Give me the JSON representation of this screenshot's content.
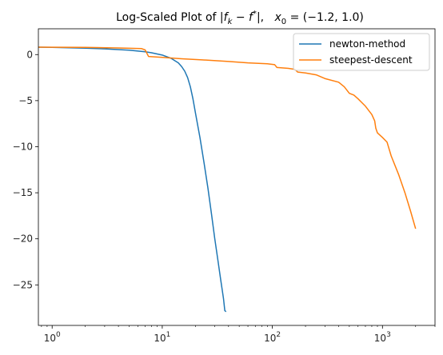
{
  "chart_data": {
    "type": "line",
    "title": "Log-Scaled Plot of |f_k − f*|,   x₀ = (−1.2, 1.0)",
    "title_parts": {
      "lead": "Log-Scaled Plot of |",
      "f": "f",
      "k": "k",
      "minus": " − ",
      "fs": "f",
      "star": "*",
      "close": "|,",
      "x": "x",
      "zero": "0",
      "eq": " = (−1.2, 1.0)"
    },
    "xlabel": "",
    "ylabel": "",
    "xscale": "log",
    "xlim": [
      0.75,
      3000
    ],
    "ylim": [
      -29.4,
      2.8
    ],
    "x_ticks": [
      {
        "value": 1,
        "base": "10",
        "exp": "0"
      },
      {
        "value": 10,
        "base": "10",
        "exp": "1"
      },
      {
        "value": 100,
        "base": "10",
        "exp": "2"
      },
      {
        "value": 1000,
        "base": "10",
        "exp": "3"
      }
    ],
    "y_ticks": [
      {
        "value": 0,
        "label": "0"
      },
      {
        "value": -5,
        "label": "−5"
      },
      {
        "value": -10,
        "label": "−10"
      },
      {
        "value": -15,
        "label": "−15"
      },
      {
        "value": -20,
        "label": "−20"
      },
      {
        "value": -25,
        "label": "−25"
      }
    ],
    "legend_position": "top-right",
    "grid": false,
    "series": [
      {
        "name": "newton-method",
        "color": "#1f77b4",
        "points": [
          [
            0.75,
            0.8
          ],
          [
            1,
            0.78
          ],
          [
            2,
            0.7
          ],
          [
            3,
            0.62
          ],
          [
            5,
            0.48
          ],
          [
            7,
            0.3
          ],
          [
            8,
            0.2
          ],
          [
            10,
            -0.05
          ],
          [
            12,
            -0.4
          ],
          [
            14,
            -0.9
          ],
          [
            15,
            -1.3
          ],
          [
            16,
            -1.8
          ],
          [
            17,
            -2.5
          ],
          [
            18,
            -3.5
          ],
          [
            19,
            -4.8
          ],
          [
            20,
            -6.3
          ],
          [
            22,
            -9.0
          ],
          [
            24,
            -11.8
          ],
          [
            26,
            -14.5
          ],
          [
            28,
            -17.3
          ],
          [
            30,
            -20.0
          ],
          [
            32,
            -22.3
          ],
          [
            34,
            -24.5
          ],
          [
            35,
            -25.5
          ],
          [
            36,
            -26.5
          ],
          [
            37,
            -27.8
          ],
          [
            38,
            -27.9
          ]
        ]
      },
      {
        "name": "steepest-descent",
        "color": "#ff7f0e",
        "points": [
          [
            0.75,
            0.8
          ],
          [
            2,
            0.78
          ],
          [
            4,
            0.72
          ],
          [
            6.5,
            0.65
          ],
          [
            7,
            0.5
          ],
          [
            7.5,
            -0.2
          ],
          [
            10,
            -0.3
          ],
          [
            15,
            -0.45
          ],
          [
            25,
            -0.6
          ],
          [
            40,
            -0.75
          ],
          [
            60,
            -0.9
          ],
          [
            90,
            -1.0
          ],
          [
            105,
            -1.1
          ],
          [
            110,
            -1.4
          ],
          [
            140,
            -1.5
          ],
          [
            160,
            -1.6
          ],
          [
            170,
            -1.9
          ],
          [
            200,
            -2.0
          ],
          [
            250,
            -2.2
          ],
          [
            300,
            -2.6
          ],
          [
            400,
            -3.0
          ],
          [
            450,
            -3.5
          ],
          [
            500,
            -4.2
          ],
          [
            550,
            -4.4
          ],
          [
            600,
            -4.8
          ],
          [
            700,
            -5.6
          ],
          [
            800,
            -6.5
          ],
          [
            850,
            -7.2
          ],
          [
            870,
            -8.0
          ],
          [
            900,
            -8.5
          ],
          [
            1000,
            -9.0
          ],
          [
            1100,
            -9.5
          ],
          [
            1200,
            -11.0
          ],
          [
            1400,
            -13.0
          ],
          [
            1600,
            -15.0
          ],
          [
            1800,
            -17.0
          ],
          [
            2000,
            -18.9
          ]
        ]
      }
    ]
  }
}
